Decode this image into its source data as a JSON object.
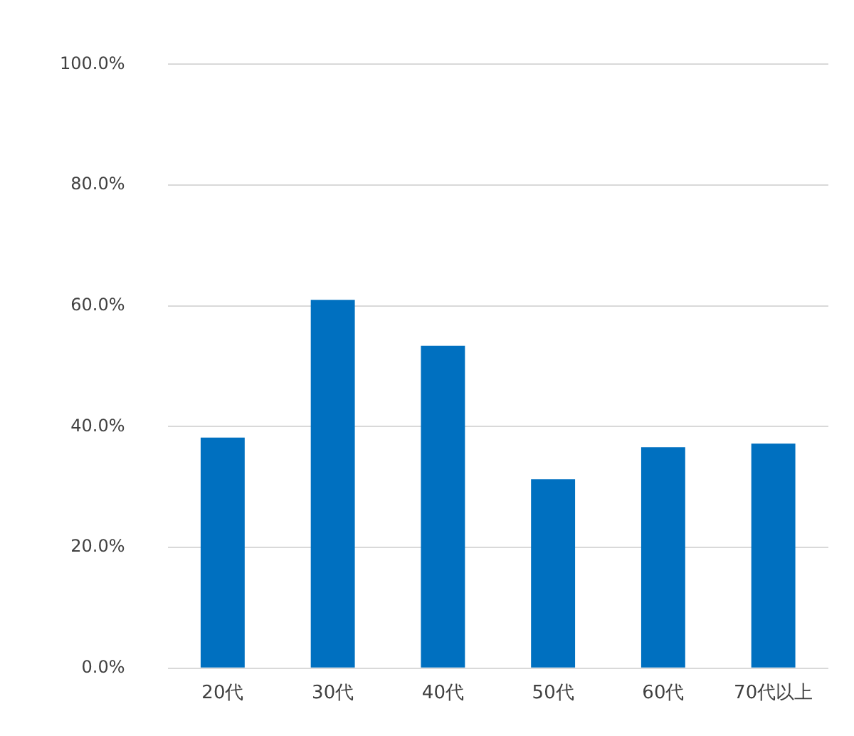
{
  "chart_data": {
    "type": "bar",
    "categories": [
      "20代",
      "30代",
      "40代",
      "50代",
      "60代",
      "70代以上"
    ],
    "values": [
      38.2,
      61.0,
      53.4,
      31.3,
      36.6,
      37.2
    ],
    "color": "#0070c0",
    "ylim": [
      0,
      100
    ],
    "yticks": [
      {
        "value": 0,
        "label": "0.0%"
      },
      {
        "value": 20,
        "label": "20.0%"
      },
      {
        "value": 40,
        "label": "40.0%"
      },
      {
        "value": 60,
        "label": "60.0%"
      },
      {
        "value": 80,
        "label": "80.0%"
      },
      {
        "value": 100,
        "label": "100.0%"
      }
    ],
    "grid": "y",
    "legend": false
  }
}
